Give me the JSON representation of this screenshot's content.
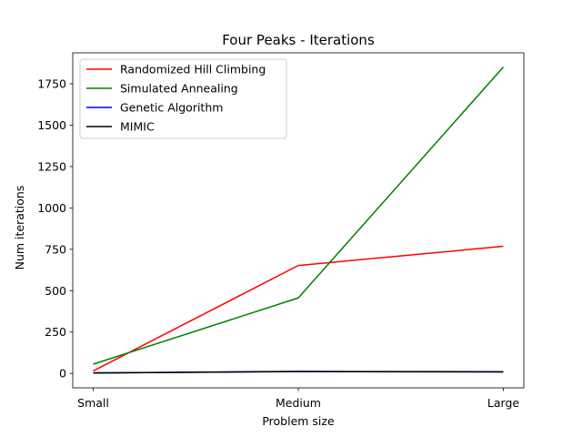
{
  "chart_data": {
    "type": "line",
    "title": "Four Peaks - Iterations",
    "xlabel": "Problem size",
    "ylabel": "Num iterations",
    "categories": [
      "Small",
      "Medium",
      "Large"
    ],
    "ylim": [
      -87,
      1937
    ],
    "yticks": [
      0,
      250,
      500,
      750,
      1000,
      1250,
      1500,
      1750
    ],
    "grid": false,
    "legend": "top-left",
    "series": [
      {
        "name": "Randomized Hill Climbing",
        "color": "#ff0000",
        "values": [
          15,
          652,
          768
        ]
      },
      {
        "name": "Simulated Annealing",
        "color": "#008000",
        "values": [
          56,
          456,
          1851
        ]
      },
      {
        "name": "Genetic Algorithm",
        "color": "#0000ff",
        "values": [
          3,
          11,
          9
        ]
      },
      {
        "name": "MIMIC",
        "color": "#000000",
        "values": [
          3,
          12,
          10
        ]
      }
    ]
  }
}
